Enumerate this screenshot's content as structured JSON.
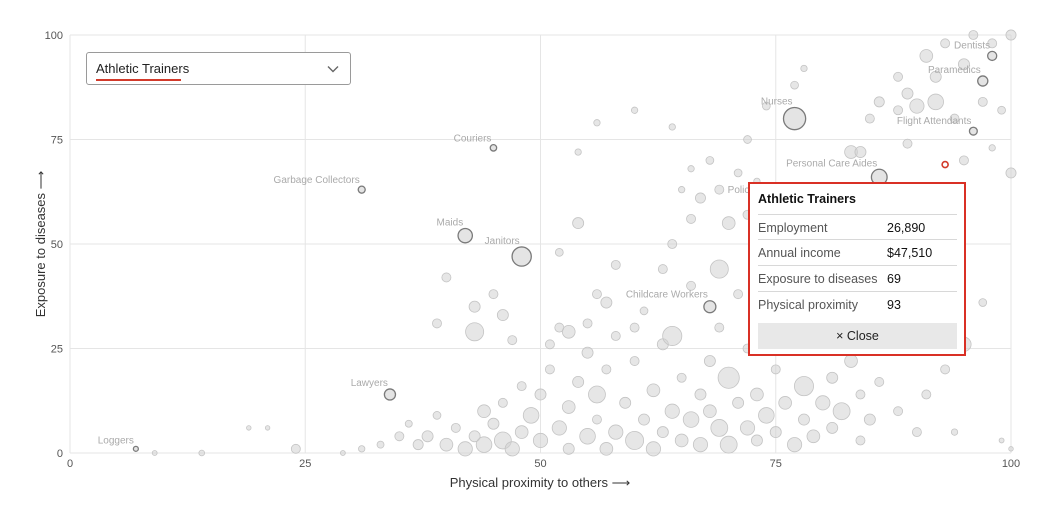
{
  "dropdown": {
    "value": "Athletic Trainers"
  },
  "tooltip": {
    "title": "Athletic Trainers",
    "rows": [
      {
        "key": "Employment",
        "value": "26,890"
      },
      {
        "key": "Annual income",
        "value": "$47,510"
      },
      {
        "key": "Exposure to diseases",
        "value": "69"
      },
      {
        "key": "Physical proximity",
        "value": "93"
      }
    ],
    "close_label": "× Close"
  },
  "colors": {
    "bubble": "#d2d2d2",
    "selected": "#d23a2a",
    "tooltip_border": "#d93025",
    "grid": "#e5e5e5"
  },
  "chart_data": {
    "type": "scatter",
    "xlabel": "Physical proximity to others ⟶",
    "ylabel": "Exposure to diseases ⟶",
    "xlim": [
      0,
      100
    ],
    "ylim": [
      0,
      100
    ],
    "xticks": [
      0,
      25,
      50,
      75,
      100
    ],
    "yticks": [
      0,
      25,
      50,
      75,
      100
    ],
    "grid": true,
    "selected": {
      "name": "Athletic Trainers",
      "x": 93,
      "y": 69
    },
    "labeled_points": [
      {
        "name": "Dentists",
        "x": 98,
        "y": 95,
        "size": 2
      },
      {
        "name": "Paramedics",
        "x": 97,
        "y": 89,
        "size": 2.5
      },
      {
        "name": "Nurses",
        "x": 77,
        "y": 80,
        "size": 12
      },
      {
        "name": "Flight Attendants",
        "x": 96,
        "y": 77,
        "size": 1.5
      },
      {
        "name": "Couriers",
        "x": 45,
        "y": 73,
        "size": 1
      },
      {
        "name": "Personal Care Aides",
        "x": 86,
        "y": 66,
        "size": 6
      },
      {
        "name": "Garbage Collectors",
        "x": 31,
        "y": 63,
        "size": 1.2
      },
      {
        "name": "Police",
        "x": 73,
        "y": 60,
        "size": 4
      },
      {
        "name": "Maids",
        "x": 42,
        "y": 52,
        "size": 5
      },
      {
        "name": "Janitors",
        "x": 48,
        "y": 47,
        "size": 9
      },
      {
        "name": "Childcare Workers",
        "x": 68,
        "y": 35,
        "size": 3.5
      },
      {
        "name": "Lawyers",
        "x": 34,
        "y": 14,
        "size": 3
      },
      {
        "name": "Loggers",
        "x": 7,
        "y": 1,
        "size": 0.6
      }
    ],
    "points": [
      [
        24,
        1,
        2
      ],
      [
        9,
        0,
        0.6
      ],
      [
        14,
        0,
        0.8
      ],
      [
        19,
        6,
        0.5
      ],
      [
        21,
        6,
        0.5
      ],
      [
        29,
        0,
        0.6
      ],
      [
        31,
        1,
        1
      ],
      [
        33,
        2,
        1.2
      ],
      [
        35,
        4,
        2
      ],
      [
        36,
        7,
        1.2
      ],
      [
        37,
        2,
        2.5
      ],
      [
        38,
        4,
        3
      ],
      [
        39,
        9,
        1.5
      ],
      [
        40,
        2,
        4
      ],
      [
        41,
        6,
        2
      ],
      [
        42,
        1,
        5
      ],
      [
        43,
        4,
        3
      ],
      [
        44,
        10,
        4
      ],
      [
        44,
        2,
        6
      ],
      [
        45,
        7,
        3
      ],
      [
        46,
        3,
        7
      ],
      [
        46,
        12,
        2
      ],
      [
        47,
        1,
        5
      ],
      [
        48,
        5,
        4
      ],
      [
        48,
        16,
        2
      ],
      [
        49,
        9,
        6
      ],
      [
        50,
        3,
        5
      ],
      [
        50,
        14,
        3
      ],
      [
        51,
        20,
        2
      ],
      [
        52,
        6,
        5
      ],
      [
        52,
        30,
        2
      ],
      [
        53,
        1,
        3
      ],
      [
        53,
        11,
        4
      ],
      [
        54,
        17,
        3
      ],
      [
        55,
        4,
        6
      ],
      [
        55,
        24,
        3
      ],
      [
        56,
        8,
        2
      ],
      [
        56,
        14,
        7
      ],
      [
        57,
        1,
        4
      ],
      [
        57,
        20,
        2
      ],
      [
        58,
        5,
        5
      ],
      [
        58,
        28,
        2
      ],
      [
        59,
        12,
        3
      ],
      [
        60,
        3,
        8
      ],
      [
        60,
        22,
        2
      ],
      [
        61,
        8,
        3
      ],
      [
        61,
        34,
        1.5
      ],
      [
        62,
        15,
        4
      ],
      [
        62,
        1,
        5
      ],
      [
        63,
        5,
        3
      ],
      [
        63,
        26,
        3
      ],
      [
        64,
        10,
        5
      ],
      [
        64,
        28,
        9
      ],
      [
        65,
        3,
        4
      ],
      [
        65,
        18,
        2
      ],
      [
        66,
        8,
        6
      ],
      [
        66,
        40,
        2
      ],
      [
        67,
        14,
        3
      ],
      [
        67,
        2,
        5
      ],
      [
        68,
        10,
        4
      ],
      [
        68,
        22,
        3
      ],
      [
        69,
        6,
        7
      ],
      [
        69,
        30,
        2
      ],
      [
        70,
        18,
        11
      ],
      [
        70,
        2,
        7
      ],
      [
        71,
        12,
        3
      ],
      [
        71,
        38,
        2
      ],
      [
        72,
        6,
        5
      ],
      [
        72,
        25,
        2
      ],
      [
        73,
        14,
        4
      ],
      [
        73,
        3,
        3
      ],
      [
        74,
        9,
        6
      ],
      [
        74,
        32,
        2
      ],
      [
        75,
        5,
        3
      ],
      [
        75,
        20,
        2
      ],
      [
        76,
        12,
        4
      ],
      [
        76,
        38,
        3
      ],
      [
        77,
        2,
        5
      ],
      [
        77,
        26,
        2
      ],
      [
        78,
        8,
        3
      ],
      [
        78,
        16,
        9
      ],
      [
        79,
        30,
        2
      ],
      [
        79,
        4,
        4
      ],
      [
        80,
        12,
        5
      ],
      [
        80,
        44,
        2
      ],
      [
        81,
        18,
        3
      ],
      [
        81,
        6,
        3
      ],
      [
        82,
        10,
        7
      ],
      [
        82,
        52,
        2
      ],
      [
        83,
        22,
        4
      ],
      [
        84,
        14,
        2
      ],
      [
        84,
        3,
        2
      ],
      [
        85,
        8,
        3
      ],
      [
        86,
        17,
        2
      ],
      [
        86,
        62,
        4
      ],
      [
        87,
        30,
        2
      ],
      [
        88,
        10,
        2
      ],
      [
        89,
        44,
        2
      ],
      [
        90,
        5,
        2
      ],
      [
        91,
        14,
        2
      ],
      [
        92,
        36,
        2
      ],
      [
        93,
        20,
        2
      ],
      [
        95,
        26,
        5
      ],
      [
        94,
        5,
        1
      ],
      [
        97,
        36,
        1.5
      ],
      [
        99,
        3,
        0.6
      ],
      [
        100,
        1,
        0.5
      ],
      [
        39,
        31,
        2
      ],
      [
        40,
        42,
        2
      ],
      [
        43,
        35,
        3
      ],
      [
        43,
        29,
        8
      ],
      [
        45,
        38,
        2
      ],
      [
        46,
        33,
        3
      ],
      [
        47,
        27,
        2
      ],
      [
        51,
        26,
        2
      ],
      [
        52,
        48,
        1.5
      ],
      [
        53,
        29,
        4
      ],
      [
        54,
        55,
        3
      ],
      [
        55,
        31,
        2
      ],
      [
        56,
        38,
        2
      ],
      [
        57,
        36,
        3
      ],
      [
        58,
        45,
        2
      ],
      [
        60,
        30,
        2
      ],
      [
        63,
        44,
        2
      ],
      [
        64,
        50,
        2
      ],
      [
        66,
        56,
        2
      ],
      [
        67,
        61,
        2.5
      ],
      [
        69,
        44,
        8
      ],
      [
        70,
        55,
        4
      ],
      [
        72,
        57,
        2
      ],
      [
        74,
        45,
        2
      ],
      [
        75,
        52,
        2
      ],
      [
        78,
        39,
        3
      ],
      [
        80,
        47,
        3
      ],
      [
        82,
        58,
        2
      ],
      [
        83,
        72,
        4
      ],
      [
        84,
        72,
        3
      ],
      [
        85,
        80,
        2
      ],
      [
        86,
        84,
        2.5
      ],
      [
        88,
        90,
        2
      ],
      [
        88,
        82,
        2
      ],
      [
        89,
        86,
        3
      ],
      [
        89,
        74,
        2
      ],
      [
        90,
        83,
        5
      ],
      [
        91,
        95,
        4
      ],
      [
        92,
        84,
        6
      ],
      [
        92,
        90,
        3
      ],
      [
        93,
        98,
        2
      ],
      [
        94,
        80,
        2
      ],
      [
        95,
        93,
        3
      ],
      [
        96,
        100,
        2
      ],
      [
        97,
        84,
        2
      ],
      [
        98,
        98,
        2
      ],
      [
        100,
        100,
        2.5
      ],
      [
        100,
        67,
        2.5
      ],
      [
        99,
        82,
        1.5
      ],
      [
        95,
        70,
        2
      ],
      [
        98,
        73,
        1
      ],
      [
        72,
        75,
        1.5
      ],
      [
        74,
        83,
        1.5
      ],
      [
        77,
        88,
        1.5
      ],
      [
        78,
        92,
        1
      ],
      [
        64,
        78,
        1
      ],
      [
        60,
        82,
        1
      ],
      [
        56,
        79,
        1
      ],
      [
        54,
        72,
        1
      ],
      [
        68,
        70,
        1.5
      ],
      [
        69,
        63,
        2
      ],
      [
        71,
        67,
        1.5
      ],
      [
        73,
        65,
        1
      ],
      [
        76,
        62,
        1
      ],
      [
        79,
        58,
        1
      ],
      [
        65,
        63,
        1
      ],
      [
        66,
        68,
        1
      ]
    ]
  }
}
